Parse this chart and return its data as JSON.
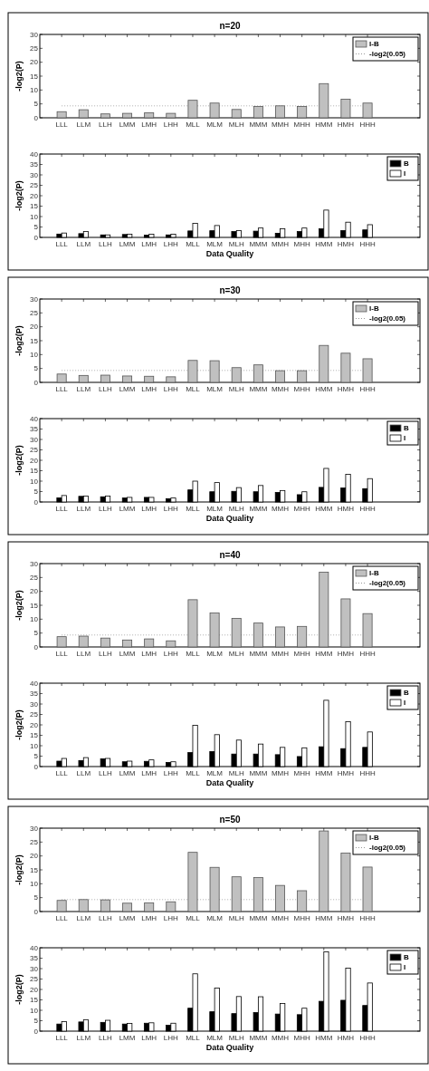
{
  "chart_data": [
    {
      "type": "bar",
      "title": "n=20",
      "ylabel": "-log2(P)",
      "categories": [
        "LLL",
        "LLM",
        "LLH",
        "LMM",
        "LMH",
        "LHH",
        "MLL",
        "MLM",
        "MLH",
        "MMM",
        "MMH",
        "MHH",
        "HMM",
        "HMH",
        "HHH"
      ],
      "series": [
        {
          "name": "I-B",
          "color": "#c0c0c0",
          "values": [
            2.2,
            2.9,
            1.4,
            1.6,
            1.8,
            1.6,
            6.3,
            5.3,
            3.0,
            4.1,
            4.3,
            4.1,
            12.3,
            6.7,
            5.3
          ]
        }
      ],
      "ylim": [
        0,
        30
      ],
      "yticks": [
        0,
        5,
        10,
        15,
        20,
        25,
        30
      ],
      "ref_lines": [
        {
          "axis": "y",
          "value": 4.3,
          "label": "-log2(0.05)",
          "color": "#999999",
          "line_style": "dotted"
        }
      ],
      "legend": "top right"
    },
    {
      "type": "bar",
      "xlabel": "Data Quality",
      "ylabel": "-log2(P)",
      "categories": [
        "LLL",
        "LLM",
        "LLH",
        "LMM",
        "LMH",
        "LHH",
        "MLL",
        "MLM",
        "MLH",
        "MMM",
        "MMH",
        "MHH",
        "HMM",
        "HMH",
        "HHH"
      ],
      "series": [
        {
          "name": "B",
          "color": "#000000",
          "values": [
            1.6,
            1.8,
            1.2,
            1.4,
            1.1,
            1.2,
            3.1,
            3.2,
            2.8,
            3.0,
            2.0,
            2.8,
            4.1,
            3.3,
            3.6
          ]
        },
        {
          "name": "I",
          "color": "#ffffff",
          "values": [
            2.1,
            2.8,
            1.2,
            1.5,
            1.5,
            1.5,
            6.7,
            5.7,
            3.3,
            4.5,
            4.1,
            4.5,
            13.1,
            7.3,
            6.1
          ]
        }
      ],
      "ylim": [
        0,
        40
      ],
      "yticks": [
        0,
        5,
        10,
        15,
        20,
        25,
        30,
        35,
        40
      ],
      "legend": "top right"
    },
    {
      "type": "bar",
      "title": "n=30",
      "ylabel": "-log2(P)",
      "categories": [
        "LLL",
        "LLM",
        "LLH",
        "LMM",
        "LMH",
        "LHH",
        "MLL",
        "MLM",
        "MLH",
        "MMM",
        "MMH",
        "MHH",
        "HMM",
        "HMH",
        "HHH"
      ],
      "series": [
        {
          "name": "I-B",
          "color": "#c0c0c0",
          "values": [
            3.0,
            2.5,
            2.6,
            2.3,
            2.2,
            2.0,
            7.9,
            7.8,
            5.3,
            6.3,
            4.2,
            4.2,
            13.3,
            10.5,
            8.5
          ]
        }
      ],
      "ylim": [
        0,
        30
      ],
      "yticks": [
        0,
        5,
        10,
        15,
        20,
        25,
        30
      ],
      "ref_lines": [
        {
          "axis": "y",
          "value": 4.3,
          "label": "-log2(0.05)",
          "color": "#999999",
          "line_style": "dotted"
        }
      ],
      "legend": "top right"
    },
    {
      "type": "bar",
      "xlabel": "Data Quality",
      "ylabel": "-log2(P)",
      "categories": [
        "LLL",
        "LLM",
        "LLH",
        "LMM",
        "LMH",
        "LHH",
        "MLL",
        "MLM",
        "MLH",
        "MMM",
        "MMH",
        "MHH",
        "HMM",
        "HMH",
        "HHH"
      ],
      "series": [
        {
          "name": "B",
          "color": "#000000",
          "values": [
            2.0,
            2.7,
            2.5,
            1.9,
            2.2,
            1.6,
            5.8,
            4.9,
            5.1,
            4.9,
            4.6,
            3.5,
            7.0,
            6.7,
            6.4
          ]
        },
        {
          "name": "I",
          "color": "#ffffff",
          "values": [
            3.1,
            2.8,
            2.8,
            2.2,
            2.2,
            1.9,
            10.0,
            9.3,
            6.9,
            7.9,
            5.5,
            4.9,
            16.1,
            13.3,
            11.2
          ]
        }
      ],
      "ylim": [
        0,
        40
      ],
      "yticks": [
        0,
        5,
        10,
        15,
        20,
        25,
        30,
        35,
        40
      ],
      "legend": "top right"
    },
    {
      "type": "bar",
      "title": "n=40",
      "ylabel": "-log2(P)",
      "categories": [
        "LLL",
        "LLM",
        "LLH",
        "LMM",
        "LMH",
        "LHH",
        "MLL",
        "MLM",
        "MLH",
        "MMM",
        "MMH",
        "MHH",
        "HMM",
        "HMH",
        "HHH"
      ],
      "series": [
        {
          "name": "I-B",
          "color": "#c0c0c0",
          "values": [
            3.7,
            3.9,
            3.2,
            2.5,
            2.9,
            2.2,
            17.0,
            12.2,
            10.3,
            8.6,
            7.2,
            7.4,
            26.9,
            17.3,
            12.0
          ]
        }
      ],
      "ylim": [
        0,
        30
      ],
      "yticks": [
        0,
        5,
        10,
        15,
        20,
        25,
        30
      ],
      "ref_lines": [
        {
          "axis": "y",
          "value": 4.3,
          "label": "-log2(0.05)",
          "color": "#999999",
          "line_style": "dotted"
        }
      ],
      "legend": "top right"
    },
    {
      "type": "bar",
      "xlabel": "Data Quality",
      "ylabel": "-log2(P)",
      "categories": [
        "LLL",
        "LLM",
        "LLH",
        "LMM",
        "LMH",
        "LHH",
        "MLL",
        "MLM",
        "MLH",
        "MMM",
        "MMH",
        "MHH",
        "HMM",
        "HMH",
        "HHH"
      ],
      "series": [
        {
          "name": "B",
          "color": "#000000",
          "values": [
            2.6,
            2.9,
            3.7,
            2.3,
            2.5,
            2.0,
            6.7,
            7.2,
            6.0,
            6.0,
            5.7,
            4.8,
            9.5,
            8.6,
            9.2
          ]
        },
        {
          "name": "I",
          "color": "#ffffff",
          "values": [
            3.9,
            4.3,
            3.9,
            2.6,
            3.2,
            2.3,
            19.8,
            15.3,
            12.7,
            10.8,
            9.2,
            9.0,
            31.8,
            21.5,
            16.6
          ]
        }
      ],
      "ylim": [
        0,
        40
      ],
      "yticks": [
        0,
        5,
        10,
        15,
        20,
        25,
        30,
        35,
        40
      ],
      "legend": "top right"
    },
    {
      "type": "bar",
      "title": "n=50",
      "ylabel": "-log2(P)",
      "categories": [
        "LLL",
        "LLM",
        "LLH",
        "LMM",
        "LMH",
        "LHH",
        "MLL",
        "MLM",
        "MLH",
        "MMM",
        "MMH",
        "MHH",
        "HMM",
        "HMH",
        "HHH"
      ],
      "series": [
        {
          "name": "I-B",
          "color": "#c0c0c0",
          "values": [
            4.0,
            4.3,
            4.2,
            3.0,
            3.1,
            3.5,
            21.3,
            15.9,
            12.5,
            12.2,
            9.4,
            7.5,
            29.0,
            21.0,
            16.0
          ]
        }
      ],
      "ylim": [
        0,
        30
      ],
      "yticks": [
        0,
        5,
        10,
        15,
        20,
        25,
        30
      ],
      "ref_lines": [
        {
          "axis": "y",
          "value": 4.3,
          "label": "-log2(0.05)",
          "color": "#999999",
          "line_style": "dotted"
        }
      ],
      "legend": "top right"
    },
    {
      "type": "bar",
      "xlabel": "Data Quality",
      "ylabel": "-log2(P)",
      "categories": [
        "LLL",
        "LLM",
        "LLH",
        "LMM",
        "LMH",
        "LHH",
        "MLL",
        "MLM",
        "MLH",
        "MMM",
        "MMH",
        "MHH",
        "HMM",
        "HMH",
        "HHH"
      ],
      "series": [
        {
          "name": "B",
          "color": "#000000",
          "values": [
            3.4,
            4.4,
            4.2,
            3.4,
            3.8,
            2.8,
            11.0,
            9.3,
            8.4,
            8.9,
            8.2,
            7.9,
            14.3,
            14.8,
            12.3
          ]
        },
        {
          "name": "I",
          "color": "#ffffff",
          "values": [
            4.6,
            5.5,
            5.2,
            3.7,
            4.0,
            3.8,
            27.5,
            20.7,
            16.6,
            16.5,
            13.3,
            11.0,
            38.0,
            30.2,
            23.1
          ]
        }
      ],
      "ylim": [
        0,
        40
      ],
      "yticks": [
        0,
        5,
        10,
        15,
        20,
        25,
        30,
        35,
        40
      ],
      "legend": "top right"
    }
  ]
}
